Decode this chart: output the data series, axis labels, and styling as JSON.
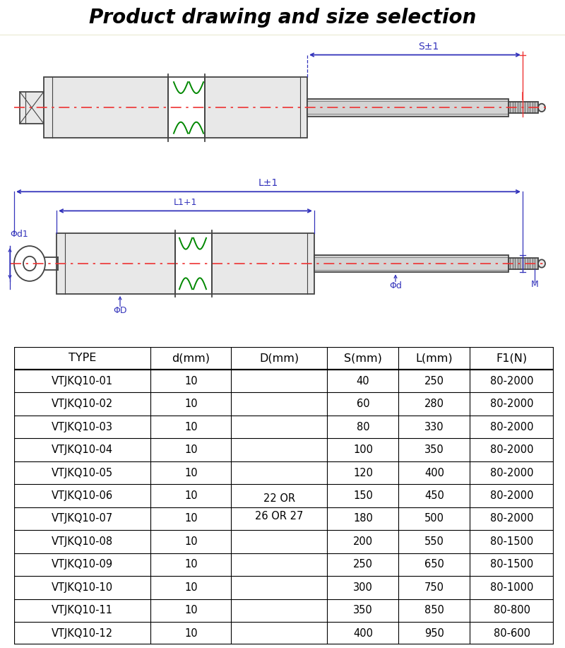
{
  "title": "Product drawing and size selection",
  "title_bg": "#FFFF00",
  "title_color": "#000000",
  "title_fontsize": 20,
  "table_headers": [
    "TYPE",
    "d(mm)",
    "D(mm)",
    "S(mm)",
    "L(mm)",
    "F1(N)"
  ],
  "table_data": [
    [
      "VTJKQ10-01",
      "10",
      "",
      "40",
      "250",
      "80-2000"
    ],
    [
      "VTJKQ10-02",
      "10",
      "",
      "60",
      "280",
      "80-2000"
    ],
    [
      "VTJKQ10-03",
      "10",
      "",
      "80",
      "330",
      "80-2000"
    ],
    [
      "VTJKQ10-04",
      "10",
      "",
      "100",
      "350",
      "80-2000"
    ],
    [
      "VTJKQ10-05",
      "10",
      "",
      "120",
      "400",
      "80-2000"
    ],
    [
      "VTJKQ10-06",
      "10",
      "",
      "150",
      "450",
      "80-2000"
    ],
    [
      "VTJKQ10-07",
      "10",
      "",
      "180",
      "500",
      "80-2000"
    ],
    [
      "VTJKQ10-08",
      "10",
      "",
      "200",
      "550",
      "80-1500"
    ],
    [
      "VTJKQ10-09",
      "10",
      "",
      "250",
      "650",
      "80-1500"
    ],
    [
      "VTJKQ10-10",
      "10",
      "",
      "300",
      "750",
      "80-1000"
    ],
    [
      "VTJKQ10-11",
      "10",
      "",
      "350",
      "850",
      "80-800"
    ],
    [
      "VTJKQ10-12",
      "10",
      "",
      "400",
      "950",
      "80-600"
    ]
  ],
  "D_cell_text": "22 OR\n26 OR 27",
  "drawing_color": "#3333BB",
  "red_line_color": "#EE3333",
  "green_color": "#008800",
  "bg_color": "#FFFFFF",
  "dgray": "#444444",
  "body_fill": "#E8E8E8",
  "rod_fill": "#D4D4D4",
  "thread_fill": "#C0C0C0"
}
